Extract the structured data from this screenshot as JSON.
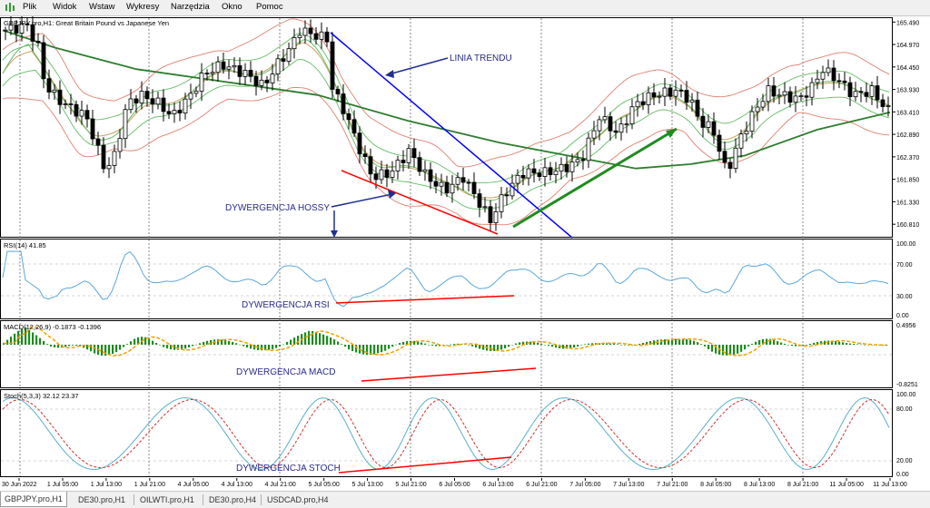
{
  "menu": [
    "Plik",
    "Widok",
    "Wstaw",
    "Wykresy",
    "Narzędzia",
    "Okno",
    "Pomoc"
  ],
  "main_panel": {
    "title": "GBPJPY.pro,H1:  Great Britain Pound vs Japanese Yen",
    "price_labels": [
      "165.490",
      "164.970",
      "164.450",
      "163.930",
      "163.410",
      "162.890",
      "162.370",
      "161.850",
      "161.330",
      "160.810"
    ],
    "price_range": [
      160.52,
      165.58
    ],
    "annotations": {
      "trend": "LINIA TRENDU",
      "hossy": "DYWERGENCJA HOSSY"
    }
  },
  "rsi_panel": {
    "title": "RSI(14) 41.85",
    "levels": [
      "100.00",
      "70.00",
      "30.00",
      "0.00"
    ],
    "annotation": "DYWERGENCJA RSI"
  },
  "macd_panel": {
    "title": "MACD(12,26,9) -0.1873 -0.1396",
    "levels": [
      "0.4956",
      "-0.8251"
    ],
    "annotation": "DYWERGENCJA MACD"
  },
  "stoch_panel": {
    "title": "Stoch(5,3,3) 32.12 23.37",
    "levels": [
      "100.00",
      "80.00",
      "20.00",
      "0.00"
    ],
    "annotation": "DYWERGENCJA STOCH"
  },
  "time_labels": [
    "30 Jun 2022",
    "1 Jul 05:00",
    "1 Jul 13:00",
    "1 Jul 21:00",
    "4 Jul 05:00",
    "4 Jul 13:00",
    "4 Jul 21:00",
    "5 Jul 05:00",
    "5 Jul 13:00",
    "5 Jul 21:00",
    "6 Jul 05:00",
    "6 Jul 13:00",
    "6 Jul 21:00",
    "7 Jul 05:00",
    "7 Jul 13:00",
    "7 Jul 21:00",
    "8 Jul 05:00",
    "8 Jul 13:00",
    "8 Jul 21:00",
    "11 Jul 05:00",
    "11 Jul 13:00"
  ],
  "tabs": [
    "GBPJPY.pro,H1",
    "DE30.pro,H1",
    "OILWTI.pro,H1",
    "DE30.pro,H4",
    "USDCAD.pro,H4"
  ],
  "colors": {
    "bull": "#ffffff",
    "bear": "#000000",
    "ma_long": "#2e7d2e",
    "band_outer": "#e08070",
    "band_mid": "#66bb66",
    "ma_short": "#c8a060",
    "trend_line": "#0000ff",
    "arrow": "#1f2f8f",
    "div_line": "#ff0000",
    "green_arrow": "#1e8c1e",
    "rsi_line": "#5aa7d8",
    "macd_hist": "#1e8c1e",
    "macd_signal": "#f0a000",
    "stoch_main": "#5ab0c8",
    "stoch_signal": "#d03030",
    "annotation_text": "#2a2a8a"
  },
  "icons": [
    "chart-app-icon"
  ],
  "chart_data": {
    "type": "line",
    "title": "GBPJPY.pro,H1:  Great Britain Pound vs Japanese Yen",
    "x": [
      "30 Jun 2022",
      "1 Jul 05:00",
      "1 Jul 13:00",
      "1 Jul 21:00",
      "4 Jul 05:00",
      "4 Jul 13:00",
      "4 Jul 21:00",
      "5 Jul 05:00",
      "5 Jul 13:00",
      "5 Jul 21:00",
      "6 Jul 05:00",
      "6 Jul 13:00",
      "6 Jul 21:00",
      "7 Jul 05:00",
      "7 Jul 13:00",
      "7 Jul 21:00",
      "8 Jul 05:00",
      "8 Jul 13:00",
      "8 Jul 21:00",
      "11 Jul 05:00",
      "11 Jul 13:00"
    ],
    "ylim": [
      160.52,
      165.58
    ],
    "series": [
      {
        "values": [
          165.3,
          164.2,
          162.6,
          163.6,
          163.4,
          164.4,
          164.3,
          165.2,
          162.7,
          161.7,
          161.9,
          160.9,
          162.0,
          162.4,
          163.6,
          163.8,
          162.2,
          163.7,
          163.9,
          164.0,
          163.5
        ]
      }
    ]
  }
}
